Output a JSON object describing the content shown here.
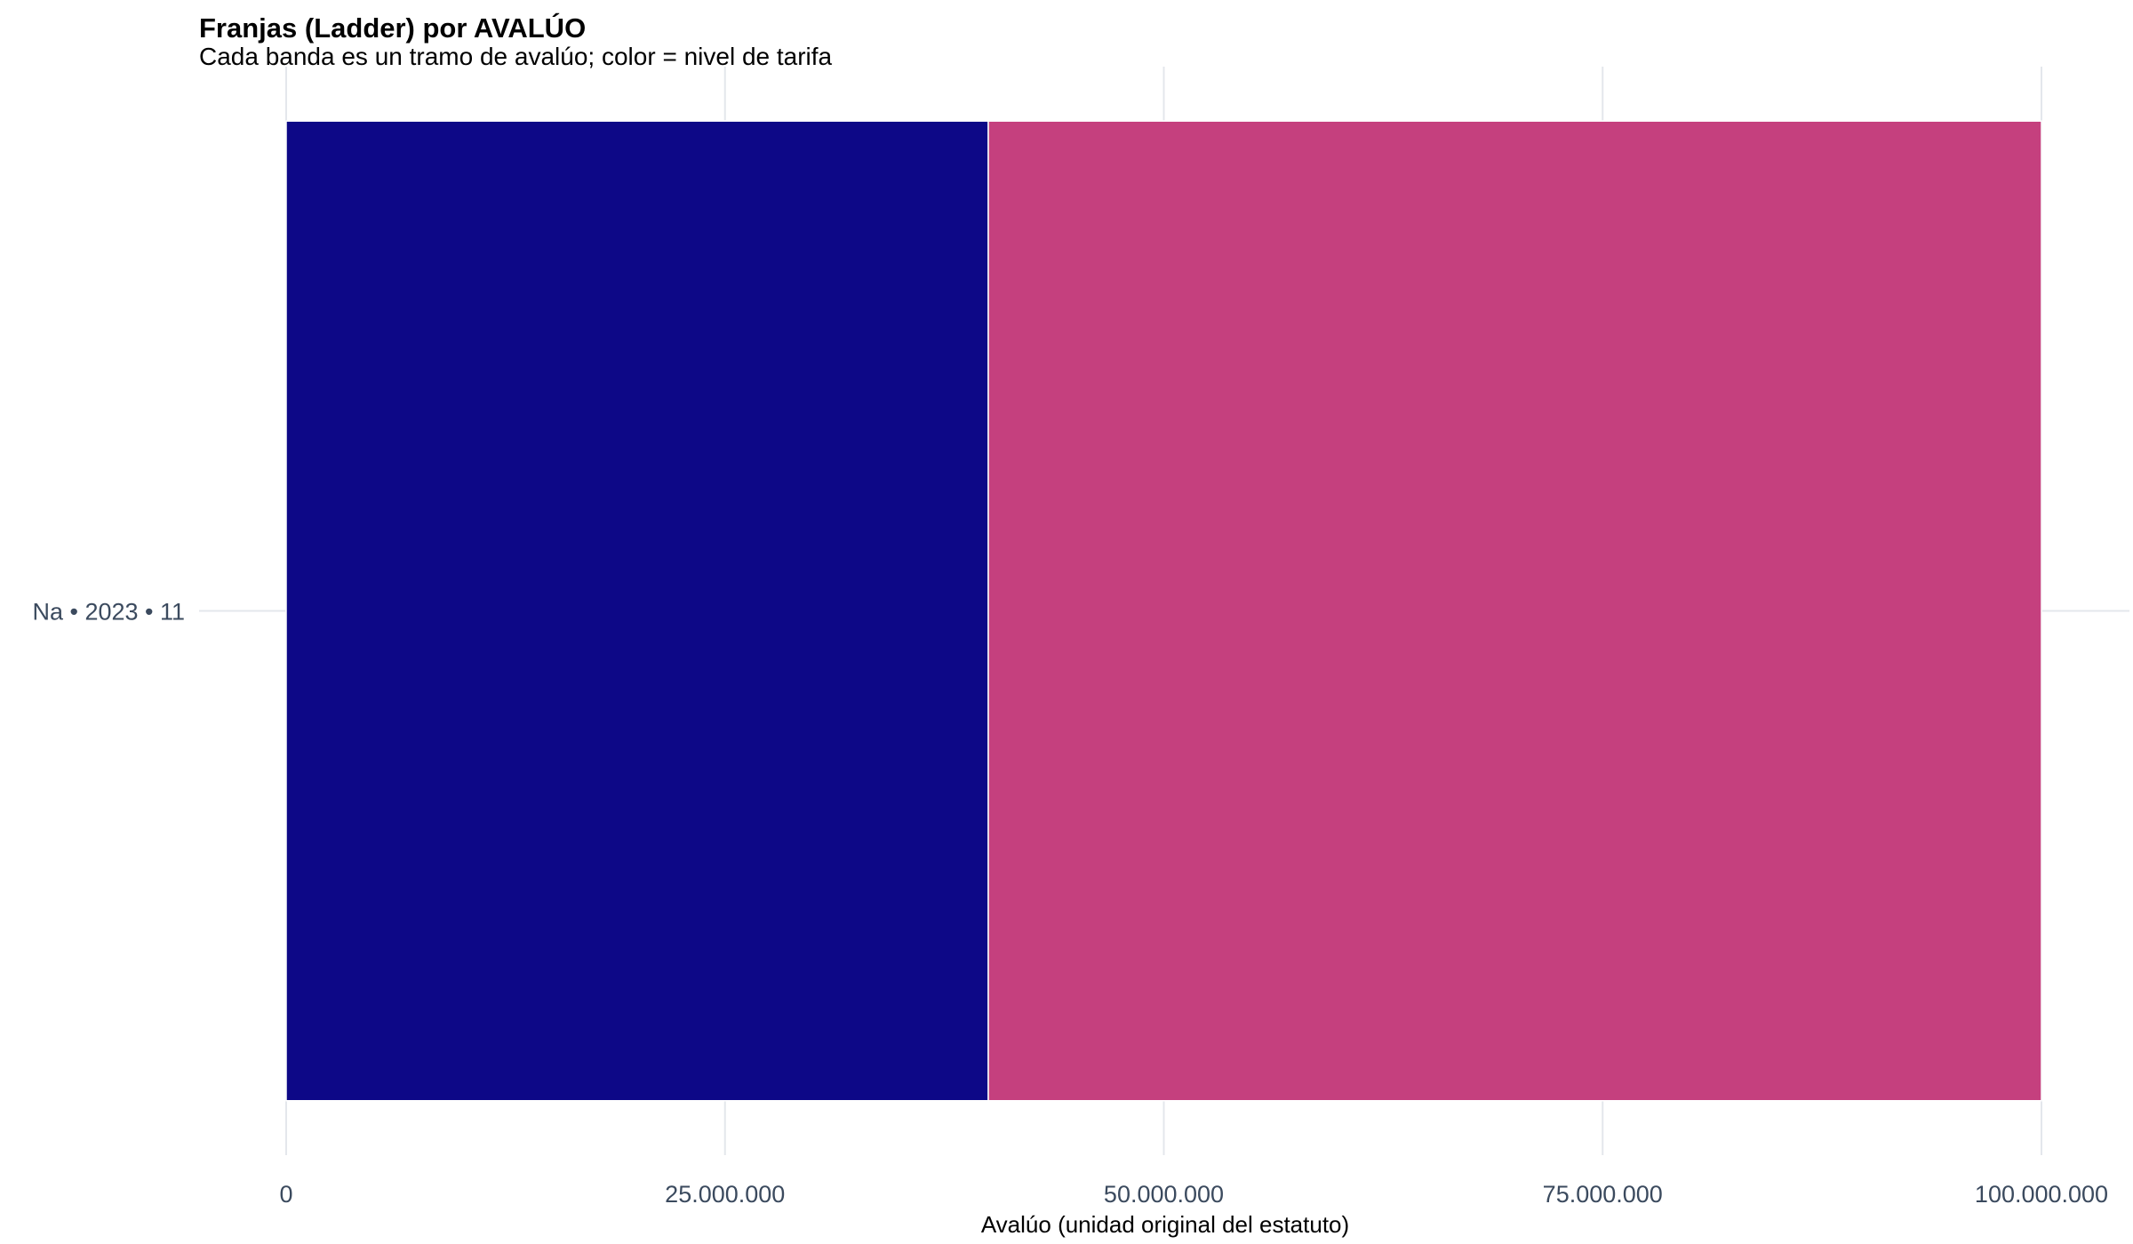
{
  "chart_data": {
    "type": "bar",
    "orientation": "horizontal",
    "stacked": true,
    "title": "Franjas (Ladder) por AVALÚO",
    "subtitle": "Cada banda es un tramo de avalúo; color = nivel de tarifa",
    "xlabel": "Avalúo (unidad original del estatuto)",
    "ylabel": "",
    "xlim": [
      0,
      100000000
    ],
    "x_ticks": [
      0,
      25000000,
      50000000,
      75000000,
      100000000
    ],
    "x_tick_labels": [
      "0",
      "25.000.000",
      "50.000.000",
      "75.000.000",
      "100.000.000"
    ],
    "categories": [
      "Na • 2023 • 11"
    ],
    "bands": [
      {
        "category": "Na • 2023 • 11",
        "start": 0,
        "end": 40000000,
        "color": "#0d0887"
      },
      {
        "category": "Na • 2023 • 11",
        "start": 40000000,
        "end": 100000000,
        "color": "#c5407e"
      }
    ],
    "grid": true,
    "legend": "none"
  }
}
